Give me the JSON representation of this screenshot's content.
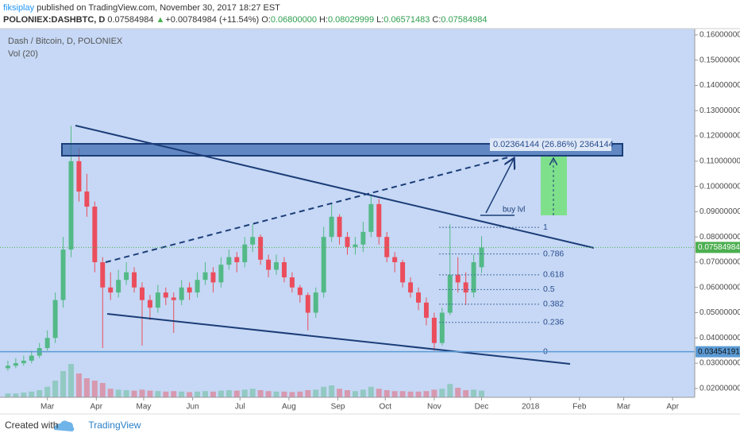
{
  "header": {
    "author": "fiksiplay",
    "published": "published on TradingView.com, November 30, 2017 18:27 EST",
    "symbol": "POLONIEX:DASHBTC, D",
    "last": "0.07584984",
    "change_arrow": "▲",
    "change": "+0.00784984 (+11.54%)",
    "ohlc": [
      {
        "label": "O:",
        "value": "0.06800000"
      },
      {
        "label": "H:",
        "value": "0.08029999"
      },
      {
        "label": "L:",
        "value": "0.06571483"
      },
      {
        "label": "C:",
        "value": "0.07584984"
      }
    ]
  },
  "footer": {
    "text": "Created with",
    "brand": "TradingView"
  },
  "chart_data": {
    "type": "candlestick",
    "title": "Dash / Bitcoin, D, POLONIEX",
    "volume_title": "Vol (20)",
    "up_color": "#53b987",
    "down_color": "#eb4d5c",
    "xlim": [
      -30,
      410
    ],
    "ylim": [
      0.0165,
      0.1625
    ],
    "volume_ylim": [
      0,
      100
    ],
    "xticks": [
      {
        "value": 0,
        "label": "Mar"
      },
      {
        "value": 31,
        "label": "Apr"
      },
      {
        "value": 61,
        "label": "May"
      },
      {
        "value": 92,
        "label": "Jun"
      },
      {
        "value": 122,
        "label": "Jul"
      },
      {
        "value": 153,
        "label": "Aug"
      },
      {
        "value": 184,
        "label": "Sep"
      },
      {
        "value": 214,
        "label": "Oct"
      },
      {
        "value": 245,
        "label": "Nov"
      },
      {
        "value": 275,
        "label": "Dec"
      },
      {
        "value": 306,
        "label": "2018"
      },
      {
        "value": 337,
        "label": "Feb"
      },
      {
        "value": 365,
        "label": "Mar"
      },
      {
        "value": 396,
        "label": "Apr"
      }
    ],
    "yticks": [
      {
        "value": 0.16,
        "label": "0.16000000"
      },
      {
        "value": 0.15,
        "label": "0.15000000"
      },
      {
        "value": 0.14,
        "label": "0.14000000"
      },
      {
        "value": 0.13,
        "label": "0.13000000"
      },
      {
        "value": 0.12,
        "label": "0.12000000"
      },
      {
        "value": 0.11,
        "label": "0.11000000"
      },
      {
        "value": 0.1,
        "label": "0.10000000"
      },
      {
        "value": 0.09,
        "label": "0.09000000"
      },
      {
        "value": 0.08,
        "label": "0.08000000"
      },
      {
        "value": 0.07,
        "label": "0.07000000"
      },
      {
        "value": 0.06,
        "label": "0.06000000"
      },
      {
        "value": 0.05,
        "label": "0.05000000"
      },
      {
        "value": 0.04,
        "label": "0.04000000"
      },
      {
        "value": 0.03,
        "label": "0.03000000"
      },
      {
        "value": 0.02,
        "label": "0.02000000"
      }
    ],
    "candles": [
      {
        "x": -25,
        "open": 0.028,
        "high": 0.031,
        "low": 0.027,
        "close": 0.029,
        "volume": 8
      },
      {
        "x": -20,
        "open": 0.029,
        "high": 0.032,
        "low": 0.028,
        "close": 0.03,
        "volume": 8
      },
      {
        "x": -15,
        "open": 0.03,
        "high": 0.033,
        "low": 0.029,
        "close": 0.031,
        "volume": 10
      },
      {
        "x": -10,
        "open": 0.031,
        "high": 0.035,
        "low": 0.03,
        "close": 0.033,
        "volume": 12
      },
      {
        "x": -5,
        "open": 0.033,
        "high": 0.038,
        "low": 0.032,
        "close": 0.036,
        "volume": 15
      },
      {
        "x": 0,
        "open": 0.036,
        "high": 0.043,
        "low": 0.035,
        "close": 0.04,
        "volume": 22
      },
      {
        "x": 5,
        "open": 0.04,
        "high": 0.058,
        "low": 0.038,
        "close": 0.055,
        "volume": 35
      },
      {
        "x": 10,
        "open": 0.055,
        "high": 0.08,
        "low": 0.052,
        "close": 0.075,
        "volume": 55
      },
      {
        "x": 15,
        "open": 0.075,
        "high": 0.124,
        "low": 0.072,
        "close": 0.11,
        "volume": 70
      },
      {
        "x": 20,
        "open": 0.11,
        "high": 0.115,
        "low": 0.094,
        "close": 0.098,
        "volume": 50
      },
      {
        "x": 25,
        "open": 0.098,
        "high": 0.105,
        "low": 0.088,
        "close": 0.092,
        "volume": 40
      },
      {
        "x": 30,
        "open": 0.092,
        "high": 0.094,
        "low": 0.066,
        "close": 0.07,
        "volume": 35
      },
      {
        "x": 35,
        "open": 0.07,
        "high": 0.072,
        "low": 0.036,
        "close": 0.06,
        "volume": 30
      },
      {
        "x": 40,
        "open": 0.06,
        "high": 0.066,
        "low": 0.055,
        "close": 0.058,
        "volume": 18
      },
      {
        "x": 45,
        "open": 0.058,
        "high": 0.067,
        "low": 0.056,
        "close": 0.063,
        "volume": 16
      },
      {
        "x": 50,
        "open": 0.063,
        "high": 0.07,
        "low": 0.061,
        "close": 0.066,
        "volume": 15
      },
      {
        "x": 55,
        "open": 0.066,
        "high": 0.068,
        "low": 0.058,
        "close": 0.06,
        "volume": 14
      },
      {
        "x": 60,
        "open": 0.06,
        "high": 0.062,
        "low": 0.037,
        "close": 0.055,
        "volume": 16
      },
      {
        "x": 65,
        "open": 0.055,
        "high": 0.057,
        "low": 0.047,
        "close": 0.052,
        "volume": 14
      },
      {
        "x": 70,
        "open": 0.052,
        "high": 0.061,
        "low": 0.05,
        "close": 0.058,
        "volume": 13
      },
      {
        "x": 75,
        "open": 0.058,
        "high": 0.06,
        "low": 0.053,
        "close": 0.056,
        "volume": 12
      },
      {
        "x": 80,
        "open": 0.056,
        "high": 0.058,
        "low": 0.042,
        "close": 0.055,
        "volume": 13
      },
      {
        "x": 85,
        "open": 0.055,
        "high": 0.063,
        "low": 0.053,
        "close": 0.06,
        "volume": 12
      },
      {
        "x": 90,
        "open": 0.06,
        "high": 0.062,
        "low": 0.055,
        "close": 0.058,
        "volume": 11
      },
      {
        "x": 95,
        "open": 0.058,
        "high": 0.066,
        "low": 0.056,
        "close": 0.063,
        "volume": 12
      },
      {
        "x": 100,
        "open": 0.063,
        "high": 0.07,
        "low": 0.061,
        "close": 0.066,
        "volume": 13
      },
      {
        "x": 105,
        "open": 0.066,
        "high": 0.068,
        "low": 0.058,
        "close": 0.062,
        "volume": 12
      },
      {
        "x": 110,
        "open": 0.062,
        "high": 0.072,
        "low": 0.06,
        "close": 0.069,
        "volume": 14
      },
      {
        "x": 115,
        "open": 0.069,
        "high": 0.075,
        "low": 0.067,
        "close": 0.072,
        "volume": 15
      },
      {
        "x": 120,
        "open": 0.072,
        "high": 0.074,
        "low": 0.066,
        "close": 0.07,
        "volume": 14
      },
      {
        "x": 125,
        "open": 0.07,
        "high": 0.08,
        "low": 0.068,
        "close": 0.077,
        "volume": 16
      },
      {
        "x": 130,
        "open": 0.077,
        "high": 0.085,
        "low": 0.074,
        "close": 0.08,
        "volume": 18
      },
      {
        "x": 135,
        "open": 0.08,
        "high": 0.081,
        "low": 0.069,
        "close": 0.071,
        "volume": 15
      },
      {
        "x": 140,
        "open": 0.071,
        "high": 0.073,
        "low": 0.064,
        "close": 0.067,
        "volume": 13
      },
      {
        "x": 145,
        "open": 0.067,
        "high": 0.073,
        "low": 0.065,
        "close": 0.07,
        "volume": 12
      },
      {
        "x": 150,
        "open": 0.07,
        "high": 0.072,
        "low": 0.062,
        "close": 0.064,
        "volume": 12
      },
      {
        "x": 155,
        "open": 0.064,
        "high": 0.066,
        "low": 0.058,
        "close": 0.06,
        "volume": 11
      },
      {
        "x": 160,
        "open": 0.06,
        "high": 0.061,
        "low": 0.054,
        "close": 0.057,
        "volume": 12
      },
      {
        "x": 165,
        "open": 0.057,
        "high": 0.058,
        "low": 0.043,
        "close": 0.05,
        "volume": 15
      },
      {
        "x": 170,
        "open": 0.05,
        "high": 0.06,
        "low": 0.048,
        "close": 0.058,
        "volume": 16
      },
      {
        "x": 175,
        "open": 0.058,
        "high": 0.084,
        "low": 0.056,
        "close": 0.08,
        "volume": 22
      },
      {
        "x": 180,
        "open": 0.08,
        "high": 0.093,
        "low": 0.078,
        "close": 0.088,
        "volume": 25
      },
      {
        "x": 185,
        "open": 0.088,
        "high": 0.089,
        "low": 0.077,
        "close": 0.08,
        "volume": 18
      },
      {
        "x": 190,
        "open": 0.08,
        "high": 0.082,
        "low": 0.073,
        "close": 0.076,
        "volume": 15
      },
      {
        "x": 195,
        "open": 0.076,
        "high": 0.08,
        "low": 0.073,
        "close": 0.077,
        "volume": 13
      },
      {
        "x": 200,
        "open": 0.077,
        "high": 0.086,
        "low": 0.074,
        "close": 0.082,
        "volume": 16
      },
      {
        "x": 205,
        "open": 0.082,
        "high": 0.097,
        "low": 0.08,
        "close": 0.093,
        "volume": 22
      },
      {
        "x": 210,
        "open": 0.093,
        "high": 0.095,
        "low": 0.077,
        "close": 0.08,
        "volume": 18
      },
      {
        "x": 215,
        "open": 0.08,
        "high": 0.082,
        "low": 0.07,
        "close": 0.072,
        "volume": 15
      },
      {
        "x": 220,
        "open": 0.072,
        "high": 0.074,
        "low": 0.066,
        "close": 0.07,
        "volume": 13
      },
      {
        "x": 225,
        "open": 0.07,
        "high": 0.071,
        "low": 0.06,
        "close": 0.062,
        "volume": 13
      },
      {
        "x": 230,
        "open": 0.062,
        "high": 0.064,
        "low": 0.056,
        "close": 0.058,
        "volume": 12
      },
      {
        "x": 235,
        "open": 0.058,
        "high": 0.06,
        "low": 0.051,
        "close": 0.054,
        "volume": 12
      },
      {
        "x": 240,
        "open": 0.054,
        "high": 0.056,
        "low": 0.045,
        "close": 0.048,
        "volume": 13
      },
      {
        "x": 245,
        "open": 0.048,
        "high": 0.05,
        "low": 0.035,
        "close": 0.038,
        "volume": 16
      },
      {
        "x": 250,
        "open": 0.038,
        "high": 0.052,
        "low": 0.037,
        "close": 0.05,
        "volume": 18
      },
      {
        "x": 255,
        "open": 0.05,
        "high": 0.085,
        "low": 0.049,
        "close": 0.065,
        "volume": 28
      },
      {
        "x": 260,
        "open": 0.065,
        "high": 0.072,
        "low": 0.058,
        "close": 0.062,
        "volume": 20
      },
      {
        "x": 265,
        "open": 0.062,
        "high": 0.066,
        "low": 0.053,
        "close": 0.058,
        "volume": 15
      },
      {
        "x": 270,
        "open": 0.058,
        "high": 0.073,
        "low": 0.056,
        "close": 0.07,
        "volume": 16
      },
      {
        "x": 275,
        "open": 0.068,
        "high": 0.08029999,
        "low": 0.06571483,
        "close": 0.07584984,
        "volume": 14
      }
    ],
    "price_lines": [
      {
        "value": 0.07584984,
        "color": "#4caf50"
      },
      {
        "value": 0.03454191,
        "color": "#5b9bd5"
      }
    ],
    "fibonacci": {
      "low": 0.03454191,
      "high": 0.0838,
      "levels": [
        1,
        0.786,
        0.618,
        0.5,
        0.382,
        0.236,
        0
      ]
    },
    "annotations": {
      "buy": "buy lvl",
      "measure": "0.02364144 (26.86%) 2364144"
    }
  }
}
